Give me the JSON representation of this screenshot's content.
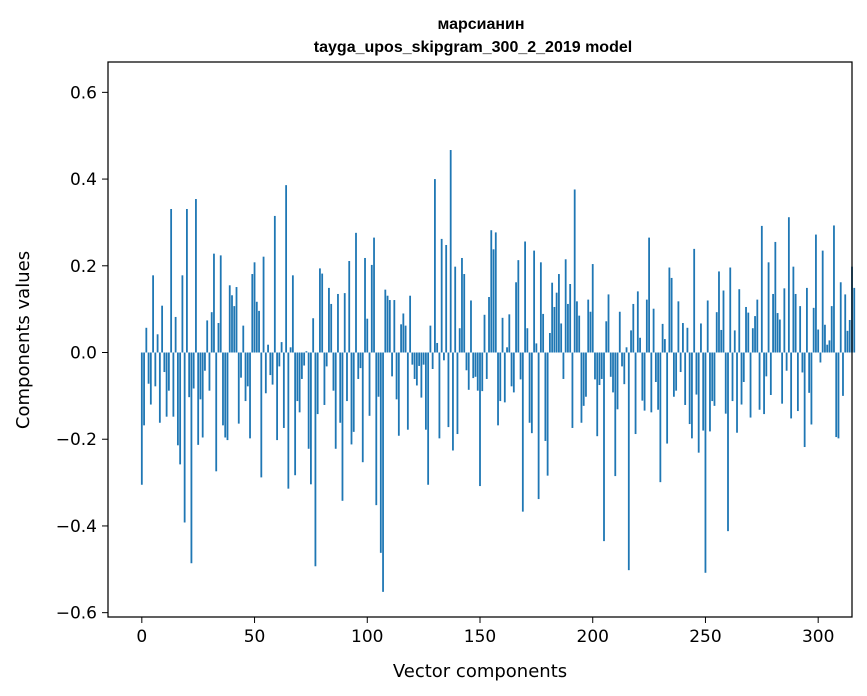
{
  "chart_data": {
    "type": "bar",
    "title": "марсианин",
    "subtitle": "tayga_upos_skipgram_300_2_2019 model",
    "xlabel": "Vector components",
    "ylabel": "Components values",
    "xlim": [
      -15,
      315
    ],
    "ylim": [
      -0.61,
      0.67
    ],
    "x_ticks": [
      0,
      50,
      100,
      150,
      200,
      250,
      300
    ],
    "x_tick_labels": [
      "0",
      "50",
      "100",
      "150",
      "200",
      "250",
      "300"
    ],
    "y_ticks": [
      -0.6,
      -0.4,
      -0.2,
      0.0,
      0.2,
      0.4,
      0.6
    ],
    "y_tick_labels": [
      "−0.6",
      "−0.4",
      "−0.2",
      "0.0",
      "0.2",
      "0.4",
      "0.6"
    ],
    "bar_color": "#1f77b4",
    "grid": false,
    "values": [
      -0.305,
      -0.168,
      0.057,
      -0.072,
      -0.12,
      0.178,
      -0.078,
      0.042,
      -0.162,
      0.108,
      -0.045,
      -0.148,
      -0.088,
      0.331,
      -0.148,
      0.082,
      -0.214,
      -0.258,
      0.178,
      -0.392,
      0.331,
      -0.103,
      -0.486,
      -0.083,
      0.354,
      -0.213,
      -0.108,
      -0.196,
      -0.042,
      0.074,
      -0.088,
      0.093,
      0.228,
      -0.274,
      0.068,
      0.224,
      -0.168,
      -0.196,
      -0.202,
      0.155,
      0.132,
      0.107,
      0.151,
      -0.164,
      -0.058,
      0.062,
      -0.112,
      -0.078,
      -0.198,
      0.181,
      0.208,
      0.117,
      0.096,
      -0.288,
      0.221,
      -0.094,
      0.018,
      -0.052,
      -0.074,
      0.315,
      -0.202,
      -0.032,
      0.024,
      -0.174,
      0.386,
      -0.314,
      0.012,
      0.178,
      -0.283,
      -0.112,
      -0.138,
      -0.061,
      -0.03,
      0.003,
      -0.222,
      -0.304,
      0.079,
      -0.493,
      -0.142,
      0.194,
      0.182,
      -0.121,
      -0.032,
      0.149,
      0.112,
      -0.088,
      -0.222,
      0.135,
      -0.162,
      -0.342,
      0.137,
      -0.112,
      0.211,
      -0.212,
      -0.183,
      0.276,
      -0.061,
      -0.036,
      -0.253,
      0.218,
      0.078,
      -0.146,
      0.202,
      0.265,
      -0.352,
      -0.102,
      -0.462,
      -0.552,
      0.145,
      0.131,
      0.121,
      -0.055,
      0.121,
      -0.108,
      -0.192,
      0.065,
      0.09,
      0.062,
      -0.178,
      0.131,
      -0.028,
      -0.061,
      -0.076,
      -0.031,
      -0.104,
      -0.028,
      -0.178,
      -0.305,
      0.062,
      -0.038,
      0.4,
      0.022,
      -0.198,
      0.262,
      -0.018,
      0.248,
      -0.172,
      0.467,
      -0.226,
      0.198,
      -0.188,
      0.056,
      0.218,
      0.181,
      -0.041,
      -0.086,
      0.12,
      -0.059,
      -0.056,
      -0.088,
      -0.308,
      -0.089,
      0.087,
      -0.061,
      0.128,
      0.282,
      0.238,
      0.277,
      -0.168,
      -0.112,
      0.08,
      -0.115,
      0.012,
      0.088,
      -0.078,
      -0.092,
      0.162,
      0.213,
      -0.062,
      -0.367,
      0.256,
      0.056,
      -0.162,
      -0.186,
      0.235,
      0.021,
      -0.338,
      0.208,
      0.089,
      -0.204,
      -0.284,
      0.045,
      0.161,
      0.105,
      0.138,
      0.181,
      0.067,
      -0.061,
      0.215,
      0.112,
      0.158,
      -0.174,
      0.376,
      0.118,
      0.085,
      -0.162,
      -0.123,
      -0.102,
      0.122,
      0.094,
      0.204,
      -0.062,
      -0.193,
      -0.075,
      -0.061,
      -0.435,
      0.072,
      0.134,
      -0.056,
      -0.092,
      -0.285,
      -0.131,
      0.094,
      -0.032,
      -0.073,
      0.012,
      -0.502,
      0.051,
      0.112,
      -0.188,
      0.141,
      0.034,
      -0.111,
      -0.134,
      0.122,
      0.265,
      -0.138,
      0.101,
      -0.068,
      -0.132,
      -0.299,
      0.066,
      0.031,
      -0.21,
      0.196,
      0.172,
      -0.102,
      -0.088,
      0.118,
      -0.045,
      0.068,
      -0.121,
      0.057,
      -0.165,
      -0.198,
      0.239,
      -0.097,
      -0.231,
      0.067,
      -0.18,
      -0.508,
      0.12,
      -0.182,
      -0.112,
      -0.123,
      0.093,
      0.187,
      0.052,
      0.143,
      -0.141,
      -0.412,
      0.196,
      -0.112,
      0.051,
      -0.185,
      0.146,
      -0.12,
      -0.068,
      0.105,
      0.092,
      -0.15,
      0.056,
      0.084,
      0.122,
      -0.132,
      0.292,
      -0.142,
      -0.055,
      0.208,
      -0.098,
      0.135,
      0.255,
      0.091,
      0.076,
      -0.118,
      0.148,
      -0.042,
      0.312,
      -0.152,
      0.198,
      0.135,
      -0.135,
      0.107,
      -0.046,
      -0.218,
      0.149,
      -0.093,
      -0.166,
      0.103,
      0.272,
      0.053,
      -0.023,
      0.235,
      0.064,
      0.018,
      0.028,
      0.107,
      0.293,
      -0.195,
      -0.198,
      0.162,
      -0.1,
      0.134,
      0.05,
      0.075,
      0.198,
      0.149
    ]
  }
}
